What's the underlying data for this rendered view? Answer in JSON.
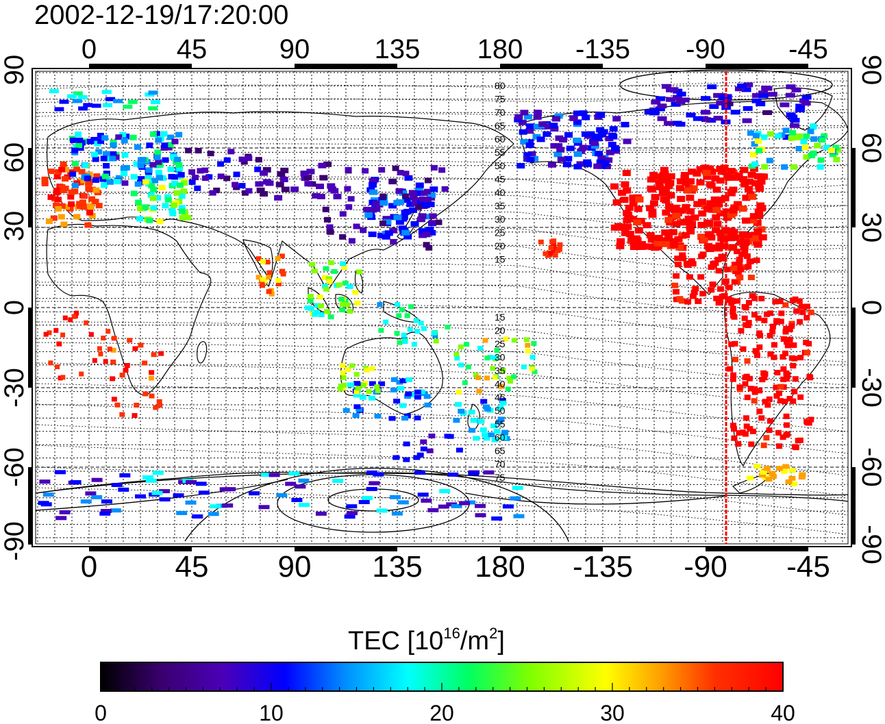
{
  "title": "2002-12-19/17:20:00",
  "map": {
    "lon_ticks": [
      "0",
      "45",
      "90",
      "135",
      "180",
      "-135",
      "-90",
      "-45"
    ],
    "lat_ticks": [
      "90",
      "60",
      "30",
      "0",
      "-30",
      "-60",
      "-90"
    ],
    "contour_labels_north": [
      "80",
      "75",
      "70",
      "65",
      "60",
      "55",
      "50",
      "45",
      "40",
      "35",
      "30",
      "25",
      "20",
      "15"
    ],
    "contour_labels_south": [
      "15",
      "20",
      "25",
      "30",
      "35",
      "40",
      "45",
      "50",
      "55",
      "60",
      "65",
      "70",
      "75"
    ],
    "marker_line": {
      "longitude": -82,
      "color": "#ff0000"
    }
  },
  "colorbar": {
    "label_main": "TEC  [10",
    "label_sup1": "16",
    "label_mid": "/m",
    "label_sup2": "2",
    "label_end": "]",
    "ticks": [
      "0",
      "10",
      "20",
      "30",
      "40"
    ],
    "min": 0,
    "max": 40,
    "colormap": [
      "#000000",
      "#3a0070",
      "#4b00b8",
      "#0000ff",
      "#0090ff",
      "#00ffff",
      "#00ff60",
      "#80ff00",
      "#ffff00",
      "#ffa000",
      "#ff3000",
      "#ff0000"
    ]
  }
}
